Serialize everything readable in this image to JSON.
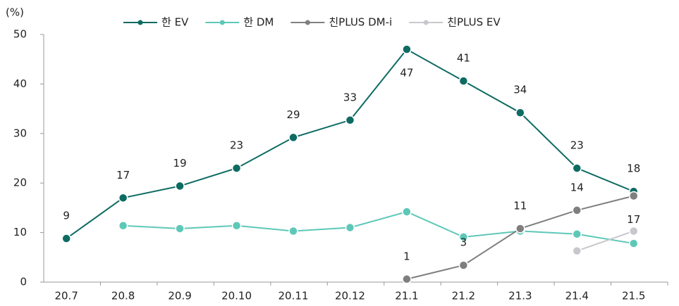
{
  "chart_data": {
    "type": "line",
    "y_unit": "(%)",
    "categories": [
      "20.7",
      "20.8",
      "20.9",
      "20.10",
      "20.11",
      "20.12",
      "21.1",
      "21.2",
      "21.3",
      "21.4",
      "21.5"
    ],
    "series": [
      {
        "name": "한 EV",
        "color": "#0d6b62",
        "values": [
          8.8,
          17,
          19.4,
          23,
          29.2,
          32.7,
          47,
          40.6,
          34.2,
          23,
          18.3
        ],
        "value_labels": [
          "9",
          "17",
          "19",
          "23",
          "29",
          "33",
          "47",
          "41",
          "34",
          "23",
          "18"
        ]
      },
      {
        "name": "한 DM",
        "color": "#5ec8b8",
        "values": [
          null,
          11.4,
          10.8,
          11.4,
          10.3,
          11,
          14.2,
          9.1,
          10.3,
          9.7,
          7.8
        ]
      },
      {
        "name": "친PLUS DM-i",
        "color": "#7f7f7f",
        "values": [
          null,
          null,
          null,
          null,
          null,
          null,
          0.6,
          3.4,
          10.8,
          14.5,
          17.4
        ],
        "value_labels": [
          null,
          null,
          null,
          null,
          null,
          null,
          "1",
          "3",
          "11",
          "14",
          "17"
        ]
      },
      {
        "name": "친PLUS EV",
        "color": "#c8c8cc",
        "values": [
          null,
          null,
          null,
          null,
          null,
          null,
          null,
          null,
          null,
          6.3,
          10.3
        ]
      }
    ],
    "ylim": [
      0,
      50
    ],
    "yticks": [
      0,
      10,
      20,
      30,
      40,
      50
    ]
  }
}
